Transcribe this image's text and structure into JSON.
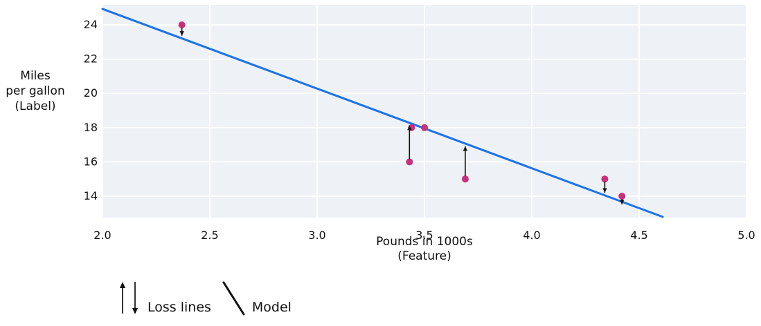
{
  "chart_data": {
    "type": "scatter",
    "title": "",
    "xlabel": "Pounds in 1000s\n(Feature)",
    "ylabel": "Miles\nper gallon\n(Label)",
    "xlim": [
      2.0,
      5.0
    ],
    "ylim": [
      12.75,
      25.17
    ],
    "grid": true,
    "legend_position": "bottom-left",
    "x_ticks": [
      {
        "value": 2.0,
        "label": "2.0"
      },
      {
        "value": 2.5,
        "label": "2.5"
      },
      {
        "value": 3.0,
        "label": "3.0"
      },
      {
        "value": 3.5,
        "label": "3.5"
      },
      {
        "value": 4.0,
        "label": "4.0"
      },
      {
        "value": 4.5,
        "label": "4.5"
      },
      {
        "value": 5.0,
        "label": "5.0"
      }
    ],
    "y_ticks": [
      {
        "value": 14,
        "label": "14"
      },
      {
        "value": 16,
        "label": "16"
      },
      {
        "value": 18,
        "label": "18"
      },
      {
        "value": 20,
        "label": "20"
      },
      {
        "value": 22,
        "label": "22"
      },
      {
        "value": 24,
        "label": "24"
      }
    ],
    "points": [
      {
        "x": 2.37,
        "y": 24,
        "loss_arrow": "down"
      },
      {
        "x": 3.44,
        "y": 18,
        "loss_arrow": null
      },
      {
        "x": 3.5,
        "y": 18,
        "loss_arrow": null
      },
      {
        "x": 3.43,
        "y": 16,
        "loss_arrow": "up"
      },
      {
        "x": 3.69,
        "y": 15,
        "loss_arrow": "up"
      },
      {
        "x": 4.34,
        "y": 15,
        "loss_arrow": "down"
      },
      {
        "x": 4.42,
        "y": 14,
        "loss_arrow": "down"
      }
    ],
    "model_line": {
      "x1": 2.0,
      "y1": 24.93,
      "x2": 4.61,
      "y2": 12.79
    },
    "legend": [
      {
        "symbol": "loss-arrows",
        "label": "Loss lines"
      },
      {
        "symbol": "model-line",
        "label": "Model"
      }
    ],
    "colors": {
      "point": "#ca2f7c",
      "model_line": "#1a73e8",
      "loss_arrow": "#111111",
      "plot_background": "#eef1f6",
      "gridline": "#ffffff",
      "text": "#111111"
    }
  }
}
